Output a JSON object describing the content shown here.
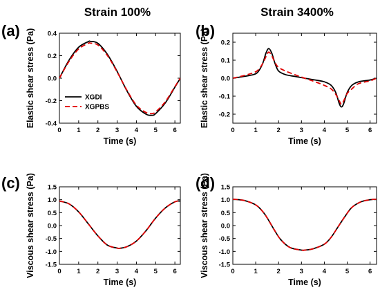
{
  "column_titles": [
    "Strain 100%",
    "Strain 3400%"
  ],
  "series_colors": {
    "XGDI": "#000000",
    "XGPBS": "#e00000"
  },
  "chart_data": [
    {
      "panel": "(a)",
      "type": "line",
      "title": "Strain 100%",
      "xlabel": "Time (s)",
      "ylabel": "Elastic shear stress (Pa)",
      "xlim": [
        0,
        6.283
      ],
      "ylim": [
        -0.4,
        0.4
      ],
      "xticks": [
        0,
        1,
        2,
        3,
        4,
        5,
        6
      ],
      "yticks": [
        -0.4,
        -0.2,
        0.0,
        0.2,
        0.4
      ],
      "ytick_labels": [
        "-0.4",
        "-0.2",
        "0.0",
        "0.2",
        "0.4"
      ],
      "legend": {
        "position": "bottom-left",
        "entries": [
          "XGDI",
          "XGPBS"
        ]
      },
      "series": [
        {
          "name": "XGDI",
          "style": "solid",
          "x": [
            0,
            0.5,
            1.0,
            1.5,
            1.6,
            2.0,
            2.5,
            3.0,
            3.5,
            4.0,
            4.5,
            4.8,
            5.0,
            5.5,
            6.0,
            6.283
          ],
          "y": [
            0,
            0.16,
            0.275,
            0.325,
            0.328,
            0.31,
            0.21,
            0.06,
            -0.11,
            -0.25,
            -0.32,
            -0.33,
            -0.315,
            -0.22,
            -0.08,
            0
          ]
        },
        {
          "name": "XGPBS",
          "style": "dashed",
          "x": [
            0,
            0.5,
            1.0,
            1.5,
            1.6,
            2.0,
            2.5,
            3.0,
            3.5,
            4.0,
            4.5,
            4.8,
            5.0,
            5.5,
            6.0,
            6.283
          ],
          "y": [
            0,
            0.15,
            0.26,
            0.31,
            0.312,
            0.295,
            0.2,
            0.055,
            -0.105,
            -0.24,
            -0.305,
            -0.315,
            -0.3,
            -0.21,
            -0.075,
            0
          ]
        }
      ]
    },
    {
      "panel": "(b)",
      "type": "line",
      "title": "Strain 3400%",
      "xlabel": "Time (s)",
      "ylabel": "Elastic shear stress (Pa)",
      "xlim": [
        0,
        6.283
      ],
      "ylim": [
        -0.25,
        0.25
      ],
      "xticks": [
        0,
        1,
        2,
        3,
        4,
        5,
        6
      ],
      "yticks": [
        -0.2,
        -0.1,
        0.0,
        0.1,
        0.2
      ],
      "ytick_labels": [
        "-0.2",
        "-0.1",
        "0.0",
        "0.1",
        "0.2"
      ],
      "series": [
        {
          "name": "XGDI",
          "style": "solid",
          "x": [
            0,
            0.5,
            0.9,
            1.1,
            1.3,
            1.45,
            1.57,
            1.7,
            1.85,
            2.0,
            2.3,
            2.7,
            3.14,
            3.6,
            4.0,
            4.3,
            4.5,
            4.65,
            4.75,
            4.85,
            5.0,
            5.2,
            5.5,
            6.0,
            6.283
          ],
          "y": [
            0,
            0.01,
            0.02,
            0.035,
            0.08,
            0.14,
            0.165,
            0.14,
            0.08,
            0.04,
            0.02,
            0.01,
            0,
            -0.01,
            -0.02,
            -0.04,
            -0.08,
            -0.14,
            -0.16,
            -0.14,
            -0.08,
            -0.04,
            -0.02,
            -0.01,
            0
          ]
        },
        {
          "name": "XGPBS",
          "style": "dashed",
          "x": [
            0,
            0.5,
            0.9,
            1.1,
            1.3,
            1.45,
            1.57,
            1.7,
            1.85,
            2.0,
            2.3,
            2.7,
            3.14,
            3.6,
            4.0,
            4.3,
            4.5,
            4.65,
            4.75,
            4.85,
            5.0,
            5.2,
            5.5,
            6.0,
            6.283
          ],
          "y": [
            0,
            0.015,
            0.03,
            0.045,
            0.08,
            0.12,
            0.145,
            0.125,
            0.085,
            0.06,
            0.04,
            0.02,
            0,
            -0.02,
            -0.04,
            -0.06,
            -0.09,
            -0.125,
            -0.145,
            -0.125,
            -0.085,
            -0.06,
            -0.03,
            -0.015,
            0
          ]
        }
      ]
    },
    {
      "panel": "(c)",
      "type": "line",
      "xlabel": "Time (s)",
      "ylabel": "Viscous shear stress (Pa)",
      "xlim": [
        0,
        6.283
      ],
      "ylim": [
        -1.5,
        1.5
      ],
      "xticks": [
        0,
        1,
        2,
        3,
        4,
        5,
        6
      ],
      "yticks": [
        -1.5,
        -1.0,
        -0.5,
        0.0,
        0.5,
        1.0,
        1.5
      ],
      "ytick_labels": [
        "-1.5",
        "-1.0",
        "-0.5",
        "0.0",
        "0.5",
        "1.0",
        "1.5"
      ],
      "series": [
        {
          "name": "XGDI",
          "style": "solid",
          "x": [
            0,
            0.5,
            1.0,
            1.5,
            2.0,
            2.5,
            3.0,
            3.14,
            3.5,
            4.0,
            4.5,
            5.0,
            5.5,
            6.0,
            6.283
          ],
          "y": [
            0.95,
            0.84,
            0.53,
            0.07,
            -0.4,
            -0.76,
            -0.87,
            -0.88,
            -0.82,
            -0.6,
            -0.2,
            0.29,
            0.68,
            0.92,
            0.95
          ]
        },
        {
          "name": "XGPBS",
          "style": "dashed",
          "x": [
            0,
            0.5,
            1.0,
            1.5,
            2.0,
            2.5,
            3.0,
            3.14,
            3.5,
            4.0,
            4.5,
            5.0,
            5.5,
            6.0,
            6.283
          ],
          "y": [
            0.95,
            0.84,
            0.53,
            0.07,
            -0.4,
            -0.76,
            -0.87,
            -0.88,
            -0.82,
            -0.6,
            -0.2,
            0.29,
            0.68,
            0.92,
            0.95
          ]
        }
      ]
    },
    {
      "panel": "(d)",
      "type": "line",
      "xlabel": "Time (s)",
      "ylabel": "Viscous shear stress (Pa)",
      "xlim": [
        0,
        6.283
      ],
      "ylim": [
        -1.5,
        1.5
      ],
      "xticks": [
        0,
        1,
        2,
        3,
        4,
        5,
        6
      ],
      "yticks": [
        -1.5,
        -1.0,
        -0.5,
        0.0,
        0.5,
        1.0,
        1.5
      ],
      "ytick_labels": [
        "-1.5",
        "-1.0",
        "-0.5",
        "0.0",
        "0.5",
        "1.0",
        "1.5"
      ],
      "series": [
        {
          "name": "XGDI",
          "style": "solid",
          "x": [
            0,
            0.5,
            1.0,
            1.3,
            1.5,
            1.8,
            2.1,
            2.5,
            3.0,
            3.14,
            3.5,
            4.0,
            4.3,
            4.6,
            4.9,
            5.2,
            5.6,
            6.0,
            6.283
          ],
          "y": [
            1.02,
            0.97,
            0.8,
            0.55,
            0.3,
            -0.15,
            -0.55,
            -0.85,
            -0.95,
            -0.95,
            -0.9,
            -0.72,
            -0.45,
            -0.05,
            0.35,
            0.7,
            0.92,
            1.0,
            1.02
          ]
        },
        {
          "name": "XGPBS",
          "style": "dashed",
          "x": [
            0,
            0.5,
            1.0,
            1.3,
            1.5,
            1.8,
            2.1,
            2.5,
            3.0,
            3.14,
            3.5,
            4.0,
            4.3,
            4.6,
            4.9,
            5.2,
            5.6,
            6.0,
            6.283
          ],
          "y": [
            1.02,
            0.97,
            0.8,
            0.55,
            0.3,
            -0.15,
            -0.55,
            -0.85,
            -0.95,
            -0.95,
            -0.9,
            -0.72,
            -0.45,
            -0.05,
            0.35,
            0.7,
            0.92,
            1.0,
            1.02
          ]
        }
      ]
    }
  ]
}
